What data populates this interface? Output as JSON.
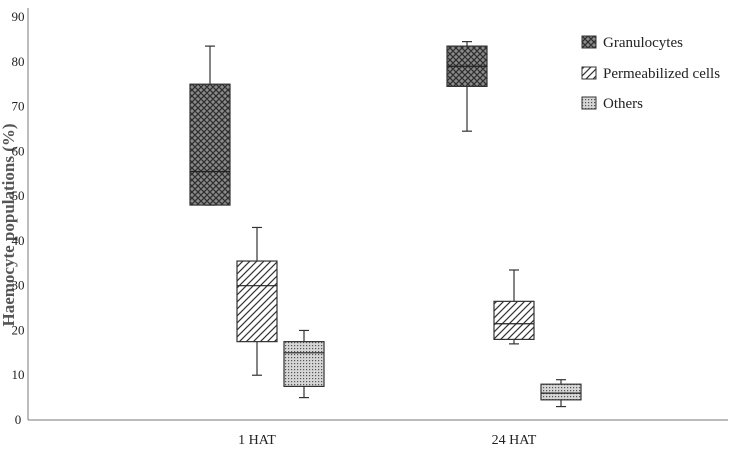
{
  "chart_data": {
    "type": "boxplot",
    "title": "",
    "xlabel": "",
    "ylabel": "Haemocyte populations (%)",
    "ylim": [
      0,
      90
    ],
    "yticks": [
      0,
      10,
      20,
      30,
      40,
      50,
      60,
      70,
      80,
      90
    ],
    "grid": false,
    "legend_position": "top-right",
    "categories": [
      "1 HAT",
      "24 HAT"
    ],
    "series": [
      {
        "name": "Granulocytes",
        "pattern": "crosshatch",
        "boxes": [
          {
            "min": 48,
            "q1": 48,
            "median": 55.5,
            "q3": 75,
            "max": 83.5
          },
          {
            "min": 64.5,
            "q1": 74.5,
            "median": 79,
            "q3": 83.5,
            "max": 84.5
          }
        ]
      },
      {
        "name": "Permeabilized cells",
        "pattern": "diagonal",
        "boxes": [
          {
            "min": 10,
            "q1": 17.5,
            "median": 30,
            "q3": 35.5,
            "max": 43
          },
          {
            "min": 17,
            "q1": 18,
            "median": 21.5,
            "q3": 26.5,
            "max": 33.5
          }
        ]
      },
      {
        "name": "Others",
        "pattern": "dotted",
        "boxes": [
          {
            "min": 5,
            "q1": 7.5,
            "median": 15,
            "q3": 17.5,
            "max": 20
          },
          {
            "min": 3,
            "q1": 4.5,
            "median": 6,
            "q3": 8,
            "max": 9
          }
        ]
      }
    ]
  }
}
